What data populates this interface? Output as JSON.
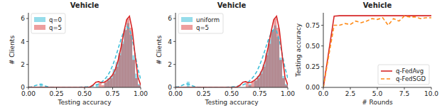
{
  "chart_data": [
    {
      "type": "histogram",
      "title": "Vehicle",
      "x_label": "Testing accuracy",
      "y_label": "# Clients",
      "xlim": [
        0,
        1
      ],
      "ylim": [
        0,
        6.5
      ],
      "xticks": [
        {
          "value": 0,
          "label": "0.00"
        },
        {
          "value": 0.25,
          "label": "0.25"
        },
        {
          "value": 0.5,
          "label": "0.50"
        },
        {
          "value": 0.75,
          "label": "0.75"
        },
        {
          "value": 1,
          "label": "1.00"
        }
      ],
      "yticks": [
        0,
        2,
        4,
        6
      ],
      "legend": "upper left",
      "bins": [
        0,
        0.025,
        0.05,
        0.075,
        0.1,
        0.125,
        0.15,
        0.175,
        0.2,
        0.225,
        0.25,
        0.275,
        0.3,
        0.325,
        0.35,
        0.375,
        0.4,
        0.425,
        0.45,
        0.475,
        0.5,
        0.525,
        0.55,
        0.575,
        0.6,
        0.625,
        0.65,
        0.675,
        0.7,
        0.725,
        0.75,
        0.775,
        0.8,
        0.825,
        0.85,
        0.875,
        0.9,
        0.925,
        0.95,
        0.975,
        1
      ],
      "kde_x": [
        0,
        0.025,
        0.05,
        0.075,
        0.1,
        0.125,
        0.15,
        0.175,
        0.2,
        0.225,
        0.25,
        0.275,
        0.3,
        0.325,
        0.35,
        0.375,
        0.4,
        0.425,
        0.45,
        0.475,
        0.5,
        0.525,
        0.55,
        0.575,
        0.6,
        0.625,
        0.65,
        0.675,
        0.7,
        0.725,
        0.75,
        0.775,
        0.8,
        0.825,
        0.85,
        0.875,
        0.9,
        0.925,
        0.95,
        0.975,
        1
      ],
      "series": [
        {
          "name": "q=0",
          "color": "#3fbfd8",
          "line_style": "dashed",
          "values": [
            0,
            0,
            0,
            0,
            0.35,
            0,
            0,
            0,
            0,
            0,
            0,
            0,
            0,
            0,
            0,
            0,
            0,
            0,
            0,
            0,
            0,
            0,
            0,
            0,
            0.3,
            0,
            0,
            0.4,
            0.8,
            1.0,
            1.6,
            2.2,
            3.0,
            4.0,
            5.0,
            5.6,
            4.6,
            2.8,
            1.2,
            0.3
          ],
          "kde": [
            0.02,
            0.05,
            0.12,
            0.2,
            0.25,
            0.22,
            0.12,
            0.05,
            0.02,
            0.01,
            0,
            0,
            0,
            0,
            0,
            0,
            0,
            0,
            0.01,
            0.03,
            0.05,
            0.06,
            0.08,
            0.12,
            0.2,
            0.3,
            0.45,
            0.65,
            0.95,
            1.35,
            1.9,
            2.6,
            3.4,
            4.2,
            4.9,
            5.3,
            5.1,
            4.2,
            2.9,
            1.6,
            0.7
          ]
        },
        {
          "name": "q=5",
          "color": "#d62728",
          "line_style": "solid",
          "values": [
            0,
            0,
            0,
            0,
            0,
            0,
            0,
            0,
            0,
            0,
            0,
            0,
            0,
            0,
            0,
            0,
            0,
            0,
            0,
            0,
            0,
            0,
            0,
            0,
            0,
            0.4,
            0.2,
            0.5,
            0.6,
            0.8,
            1.2,
            1.8,
            2.8,
            3.8,
            5.0,
            6.0,
            5.2,
            2.4,
            0.8,
            0.2
          ],
          "kde": [
            0,
            0,
            0,
            0,
            0,
            0,
            0,
            0,
            0,
            0,
            0,
            0,
            0,
            0,
            0,
            0,
            0,
            0,
            0,
            0,
            0,
            0,
            0.05,
            0.2,
            0.45,
            0.5,
            0.4,
            0.45,
            0.6,
            0.8,
            1.1,
            1.6,
            2.4,
            3.5,
            4.8,
            5.9,
            6.2,
            5.0,
            2.8,
            0.9,
            0.2
          ]
        }
      ]
    },
    {
      "type": "histogram",
      "title": "Vehicle",
      "x_label": "Testing accuracy",
      "y_label": "# Clients",
      "xlim": [
        0,
        1
      ],
      "ylim": [
        0,
        6.5
      ],
      "xticks": [
        {
          "value": 0,
          "label": "0.00"
        },
        {
          "value": 0.25,
          "label": "0.25"
        },
        {
          "value": 0.5,
          "label": "0.50"
        },
        {
          "value": 0.75,
          "label": "0.75"
        },
        {
          "value": 1,
          "label": "1.00"
        }
      ],
      "yticks": [
        0,
        2,
        4,
        6
      ],
      "legend": "upper left",
      "bins": [
        0,
        0.025,
        0.05,
        0.075,
        0.1,
        0.125,
        0.15,
        0.175,
        0.2,
        0.225,
        0.25,
        0.275,
        0.3,
        0.325,
        0.35,
        0.375,
        0.4,
        0.425,
        0.45,
        0.475,
        0.5,
        0.525,
        0.55,
        0.575,
        0.6,
        0.625,
        0.65,
        0.675,
        0.7,
        0.725,
        0.75,
        0.775,
        0.8,
        0.825,
        0.85,
        0.875,
        0.9,
        0.925,
        0.95,
        0.975,
        1
      ],
      "kde_x": [
        0,
        0.025,
        0.05,
        0.075,
        0.1,
        0.125,
        0.15,
        0.175,
        0.2,
        0.225,
        0.25,
        0.275,
        0.3,
        0.325,
        0.35,
        0.375,
        0.4,
        0.425,
        0.45,
        0.475,
        0.5,
        0.525,
        0.55,
        0.575,
        0.6,
        0.625,
        0.65,
        0.675,
        0.7,
        0.725,
        0.75,
        0.775,
        0.8,
        0.825,
        0.85,
        0.875,
        0.9,
        0.925,
        0.95,
        0.975,
        1
      ],
      "series": [
        {
          "name": "uniform",
          "color": "#3fbfd8",
          "line_style": "dashed",
          "values": [
            0,
            0,
            0,
            0,
            0.5,
            0,
            0,
            0,
            0,
            0,
            0,
            0,
            0,
            0,
            0,
            0,
            0,
            0,
            0,
            0,
            0,
            0,
            0,
            0,
            0,
            0,
            0.3,
            0,
            0.6,
            1.0,
            1.4,
            2.0,
            3.0,
            4.2,
            5.0,
            5.4,
            4.4,
            2.6,
            1.0,
            0.3
          ],
          "kde": [
            0.02,
            0.06,
            0.14,
            0.24,
            0.3,
            0.26,
            0.14,
            0.06,
            0.02,
            0.01,
            0,
            0,
            0,
            0,
            0,
            0,
            0,
            0,
            0.01,
            0.03,
            0.05,
            0.07,
            0.1,
            0.15,
            0.22,
            0.32,
            0.48,
            0.7,
            1.0,
            1.4,
            1.95,
            2.6,
            3.35,
            4.1,
            4.7,
            5.05,
            4.9,
            4.1,
            2.9,
            1.7,
            0.8
          ]
        },
        {
          "name": "q=5",
          "color": "#d62728",
          "line_style": "solid",
          "values": [
            0,
            0,
            0,
            0,
            0,
            0,
            0,
            0,
            0,
            0,
            0,
            0,
            0,
            0,
            0,
            0,
            0,
            0,
            0,
            0,
            0,
            0,
            0,
            0,
            0,
            0.4,
            0.2,
            0.5,
            0.6,
            0.8,
            1.2,
            1.8,
            2.8,
            3.8,
            5.0,
            6.0,
            5.2,
            2.4,
            0.8,
            0.2
          ],
          "kde": [
            0,
            0,
            0,
            0,
            0,
            0,
            0,
            0,
            0,
            0,
            0,
            0,
            0,
            0,
            0,
            0,
            0,
            0,
            0,
            0,
            0,
            0,
            0.05,
            0.2,
            0.45,
            0.5,
            0.4,
            0.45,
            0.6,
            0.8,
            1.1,
            1.6,
            2.4,
            3.5,
            4.8,
            5.9,
            6.2,
            5.0,
            2.8,
            0.9,
            0.2
          ]
        }
      ]
    },
    {
      "type": "line",
      "title": "Vehicle",
      "x_label": "# Rounds",
      "y_label": "Testing accuracy",
      "xlim": [
        0,
        10
      ],
      "ylim": [
        0,
        0.9
      ],
      "xticks": [
        {
          "value": 0,
          "label": "0.0"
        },
        {
          "value": 2.5,
          "label": "2.5"
        },
        {
          "value": 5,
          "label": "5.0"
        },
        {
          "value": 7.5,
          "label": "7.5"
        },
        {
          "value": 10,
          "label": "10.0"
        }
      ],
      "yticks": [
        {
          "value": 0,
          "label": "0.00"
        },
        {
          "value": 0.25,
          "label": "0.25"
        },
        {
          "value": 0.5,
          "label": "0.50"
        },
        {
          "value": 0.75,
          "label": "0.75"
        }
      ],
      "legend": "lower right",
      "x": [
        0,
        0.5,
        1,
        1.5,
        2,
        2.5,
        3,
        3.5,
        4,
        4.5,
        5,
        5.5,
        6,
        6.5,
        7,
        7.5,
        8,
        8.5,
        9,
        9.5,
        10
      ],
      "series": [
        {
          "name": "q-FedAvg",
          "color": "#d62728",
          "line_style": "solid",
          "values": [
            0,
            0.43,
            0.86,
            0.865,
            0.865,
            0.865,
            0.865,
            0.865,
            0.865,
            0.865,
            0.865,
            0.865,
            0.865,
            0.865,
            0.865,
            0.865,
            0.865,
            0.865,
            0.865,
            0.865,
            0.865
          ]
        },
        {
          "name": "q-FedSGD",
          "color": "#ff8c1a",
          "line_style": "dashed",
          "values": [
            0,
            0.38,
            0.75,
            0.75,
            0.77,
            0.76,
            0.8,
            0.78,
            0.8,
            0.83,
            0.82,
            0.84,
            0.75,
            0.83,
            0.8,
            0.86,
            0.85,
            0.85,
            0.83,
            0.84,
            0.84
          ]
        }
      ]
    }
  ]
}
